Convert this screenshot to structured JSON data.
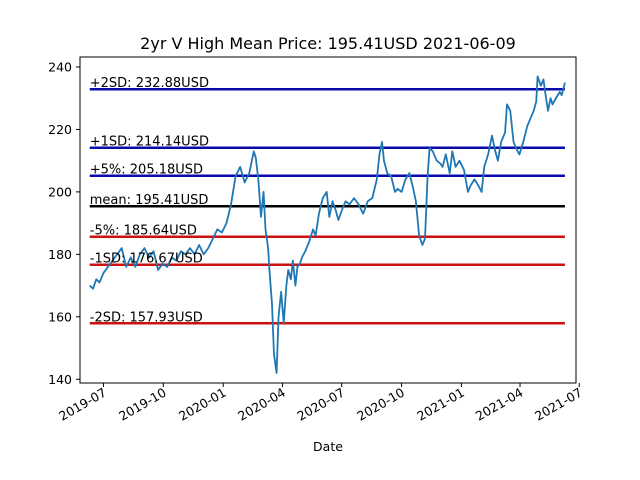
{
  "chart_data": {
    "type": "line",
    "title": "2yr V High Mean Price: 195.41USD 2021-06-09",
    "xlabel": "Date",
    "ylabel": "",
    "ylim": [
      138.8,
      243.2
    ],
    "xlim": [
      "2019-05-26",
      "2021-06-26"
    ],
    "grid": false,
    "x_ticks": [
      "2019-07",
      "2019-10",
      "2020-01",
      "2020-04",
      "2020-07",
      "2020-10",
      "2021-01",
      "2021-04",
      "2021-07"
    ],
    "y_ticks": [
      140,
      160,
      180,
      200,
      220,
      240
    ],
    "series": [
      {
        "color": "#1f77b4",
        "points": [
          [
            "2019-06-10",
            170.0
          ],
          [
            "2019-06-15",
            169.0
          ],
          [
            "2019-06-20",
            172.0
          ],
          [
            "2019-06-25",
            171.0
          ],
          [
            "2019-07-01",
            174.0
          ],
          [
            "2019-07-08",
            176.0
          ],
          [
            "2019-07-15",
            178.0
          ],
          [
            "2019-07-22",
            180.0
          ],
          [
            "2019-07-29",
            182.0
          ],
          [
            "2019-08-05",
            176.0
          ],
          [
            "2019-08-12",
            179.0
          ],
          [
            "2019-08-19",
            176.0
          ],
          [
            "2019-08-26",
            180.0
          ],
          [
            "2019-09-02",
            182.0
          ],
          [
            "2019-09-09",
            179.0
          ],
          [
            "2019-09-16",
            181.0
          ],
          [
            "2019-09-23",
            175.0
          ],
          [
            "2019-09-30",
            177.0
          ],
          [
            "2019-10-07",
            176.0
          ],
          [
            "2019-10-14",
            179.0
          ],
          [
            "2019-10-21",
            178.0
          ],
          [
            "2019-10-28",
            181.0
          ],
          [
            "2019-11-04",
            180.0
          ],
          [
            "2019-11-11",
            182.0
          ],
          [
            "2019-11-18",
            180.0
          ],
          [
            "2019-11-25",
            183.0
          ],
          [
            "2019-12-02",
            180.0
          ],
          [
            "2019-12-09",
            182.0
          ],
          [
            "2019-12-16",
            185.0
          ],
          [
            "2019-12-23",
            188.0
          ],
          [
            "2019-12-30",
            187.0
          ],
          [
            "2020-01-06",
            190.0
          ],
          [
            "2020-01-13",
            196.0
          ],
          [
            "2020-01-20",
            205.0
          ],
          [
            "2020-01-27",
            208.0
          ],
          [
            "2020-02-03",
            203.0
          ],
          [
            "2020-02-10",
            206.0
          ],
          [
            "2020-02-17",
            213.0
          ],
          [
            "2020-02-20",
            211.0
          ],
          [
            "2020-02-24",
            204.0
          ],
          [
            "2020-02-28",
            192.0
          ],
          [
            "2020-03-03",
            200.0
          ],
          [
            "2020-03-06",
            188.0
          ],
          [
            "2020-03-10",
            182.0
          ],
          [
            "2020-03-12",
            175.0
          ],
          [
            "2020-03-16",
            164.0
          ],
          [
            "2020-03-19",
            148.0
          ],
          [
            "2020-03-23",
            142.0
          ],
          [
            "2020-03-26",
            160.0
          ],
          [
            "2020-03-30",
            168.0
          ],
          [
            "2020-04-03",
            158.0
          ],
          [
            "2020-04-07",
            170.0
          ],
          [
            "2020-04-10",
            175.0
          ],
          [
            "2020-04-14",
            172.0
          ],
          [
            "2020-04-17",
            178.0
          ],
          [
            "2020-04-21",
            170.0
          ],
          [
            "2020-04-24",
            176.0
          ],
          [
            "2020-04-28",
            177.0
          ],
          [
            "2020-05-01",
            179.0
          ],
          [
            "2020-05-06",
            181.0
          ],
          [
            "2020-05-12",
            184.0
          ],
          [
            "2020-05-18",
            188.0
          ],
          [
            "2020-05-22",
            186.0
          ],
          [
            "2020-05-27",
            193.0
          ],
          [
            "2020-06-02",
            198.0
          ],
          [
            "2020-06-08",
            200.0
          ],
          [
            "2020-06-12",
            192.0
          ],
          [
            "2020-06-17",
            197.0
          ],
          [
            "2020-06-22",
            194.0
          ],
          [
            "2020-06-26",
            191.0
          ],
          [
            "2020-07-01",
            194.0
          ],
          [
            "2020-07-07",
            197.0
          ],
          [
            "2020-07-13",
            196.0
          ],
          [
            "2020-07-20",
            198.0
          ],
          [
            "2020-07-27",
            196.0
          ],
          [
            "2020-08-03",
            193.0
          ],
          [
            "2020-08-10",
            197.0
          ],
          [
            "2020-08-17",
            198.0
          ],
          [
            "2020-08-24",
            204.0
          ],
          [
            "2020-08-28",
            212.0
          ],
          [
            "2020-09-01",
            216.0
          ],
          [
            "2020-09-04",
            210.0
          ],
          [
            "2020-09-09",
            206.0
          ],
          [
            "2020-09-15",
            205.0
          ],
          [
            "2020-09-21",
            200.0
          ],
          [
            "2020-09-25",
            201.0
          ],
          [
            "2020-10-01",
            200.0
          ],
          [
            "2020-10-07",
            204.0
          ],
          [
            "2020-10-13",
            206.0
          ],
          [
            "2020-10-19",
            201.0
          ],
          [
            "2020-10-23",
            197.0
          ],
          [
            "2020-10-28",
            186.0
          ],
          [
            "2020-11-02",
            183.0
          ],
          [
            "2020-11-06",
            185.0
          ],
          [
            "2020-11-10",
            205.0
          ],
          [
            "2020-11-13",
            214.0
          ],
          [
            "2020-11-18",
            213.0
          ],
          [
            "2020-11-24",
            210.0
          ],
          [
            "2020-11-30",
            209.0
          ],
          [
            "2020-12-03",
            208.0
          ],
          [
            "2020-12-08",
            212.0
          ],
          [
            "2020-12-14",
            206.0
          ],
          [
            "2020-12-18",
            213.0
          ],
          [
            "2020-12-23",
            208.0
          ],
          [
            "2020-12-29",
            210.0
          ],
          [
            "2021-01-05",
            207.0
          ],
          [
            "2021-01-11",
            200.0
          ],
          [
            "2021-01-15",
            202.0
          ],
          [
            "2021-01-21",
            204.0
          ],
          [
            "2021-01-27",
            202.0
          ],
          [
            "2021-02-01",
            200.0
          ],
          [
            "2021-02-05",
            208.0
          ],
          [
            "2021-02-11",
            212.0
          ],
          [
            "2021-02-17",
            218.0
          ],
          [
            "2021-02-22",
            213.0
          ],
          [
            "2021-02-26",
            210.0
          ],
          [
            "2021-03-03",
            216.0
          ],
          [
            "2021-03-09",
            219.0
          ],
          [
            "2021-03-12",
            228.0
          ],
          [
            "2021-03-17",
            226.0
          ],
          [
            "2021-03-22",
            216.0
          ],
          [
            "2021-03-26",
            214.0
          ],
          [
            "2021-03-31",
            212.0
          ],
          [
            "2021-04-06",
            216.0
          ],
          [
            "2021-04-12",
            221.0
          ],
          [
            "2021-04-16",
            223.0
          ],
          [
            "2021-04-22",
            226.0
          ],
          [
            "2021-04-26",
            229.0
          ],
          [
            "2021-04-28",
            237.0
          ],
          [
            "2021-05-03",
            234.0
          ],
          [
            "2021-05-07",
            236.0
          ],
          [
            "2021-05-11",
            230.0
          ],
          [
            "2021-05-14",
            226.0
          ],
          [
            "2021-05-18",
            230.0
          ],
          [
            "2021-05-21",
            228.0
          ],
          [
            "2021-05-26",
            230.0
          ],
          [
            "2021-06-01",
            232.0
          ],
          [
            "2021-06-04",
            231.0
          ],
          [
            "2021-06-09",
            235.0
          ]
        ]
      }
    ],
    "reference_lines": [
      {
        "label": "+2SD: 232.88USD",
        "value": 232.88,
        "color": "#0a0aaa"
      },
      {
        "label": "+1SD: 214.14USD",
        "value": 214.14,
        "color": "#0a0aaa"
      },
      {
        "label": "+5%: 205.18USD",
        "value": 205.18,
        "color": "#0a0aaa"
      },
      {
        "label": "mean: 195.41USD",
        "value": 195.41,
        "color": "#000000"
      },
      {
        "label": "-5%: 185.64USD",
        "value": 185.64,
        "color": "#cc1111"
      },
      {
        "label": "-1SD: 176.67USD",
        "value": 176.67,
        "color": "#cc1111"
      },
      {
        "label": "-2SD: 157.93USD",
        "value": 157.93,
        "color": "#cc1111"
      }
    ],
    "reference_range": [
      "2019-06-10",
      "2021-06-09"
    ]
  }
}
